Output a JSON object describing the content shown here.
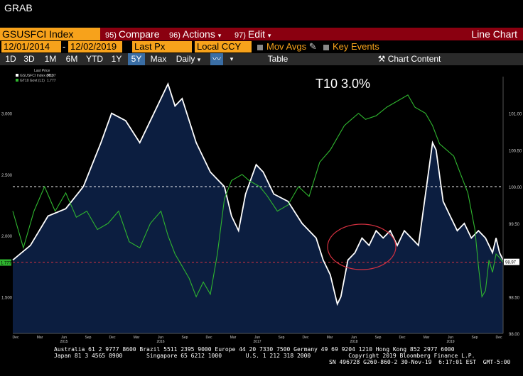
{
  "window": {
    "title": "GRAB"
  },
  "toolbar": {
    "ticker": "GSUSFCI Index",
    "compare": {
      "num": "95)",
      "label": "Compare"
    },
    "actions": {
      "num": "96)",
      "label": "Actions",
      "arrow": "▾"
    },
    "edit": {
      "num": "97)",
      "label": "Edit",
      "arrow": "▾"
    },
    "view": "Line Chart"
  },
  "range": {
    "start": "12/01/2014",
    "end": "12/02/2019",
    "price": "Last Px",
    "currency": "Local CCY",
    "mov_avgs": "Mov Avgs",
    "key_events": "Key Events"
  },
  "periods": [
    "1D",
    "3D",
    "1M",
    "6M",
    "YTD",
    "1Y",
    "5Y",
    "Max"
  ],
  "selected_period": "5Y",
  "freq": "Daily",
  "table_label": "Table",
  "chart_content_label": "Chart Content",
  "chart_data": {
    "type": "line",
    "annotation": "T10 3.0%",
    "legend_title": "Last Price",
    "series": [
      {
        "name": "GSUSFCI Index (R1)",
        "last": "98.97",
        "color": "#ffffff",
        "axis": "right",
        "area_color": "#0c1e40",
        "points": [
          [
            0,
            99.0
          ],
          [
            5,
            99.2
          ],
          [
            10,
            99.6
          ],
          [
            15,
            99.7
          ],
          [
            20,
            100.0
          ],
          [
            25,
            100.6
          ],
          [
            28,
            101.0
          ],
          [
            32,
            100.9
          ],
          [
            36,
            100.6
          ],
          [
            40,
            101.0
          ],
          [
            44,
            101.4
          ],
          [
            46,
            101.1
          ],
          [
            48,
            101.2
          ],
          [
            52,
            100.6
          ],
          [
            56,
            100.2
          ],
          [
            60,
            100.0
          ],
          [
            62,
            99.6
          ],
          [
            64,
            99.4
          ],
          [
            66,
            99.9
          ],
          [
            69,
            100.3
          ],
          [
            71,
            100.2
          ],
          [
            74,
            99.9
          ],
          [
            78,
            99.8
          ],
          [
            82,
            99.5
          ],
          [
            86,
            99.3
          ],
          [
            88,
            99.0
          ],
          [
            90,
            98.8
          ],
          [
            92,
            98.4
          ],
          [
            93,
            98.5
          ],
          [
            95,
            99.0
          ],
          [
            97,
            99.1
          ],
          [
            99,
            99.3
          ],
          [
            101,
            99.2
          ],
          [
            103,
            99.4
          ],
          [
            105,
            99.3
          ],
          [
            107,
            99.4
          ],
          [
            109,
            99.2
          ],
          [
            111,
            99.4
          ],
          [
            113,
            99.3
          ],
          [
            115,
            99.2
          ],
          [
            117,
            99.9
          ],
          [
            119,
            100.6
          ],
          [
            120,
            100.5
          ],
          [
            122,
            99.8
          ],
          [
            124,
            99.6
          ],
          [
            126,
            99.4
          ],
          [
            128,
            99.5
          ],
          [
            130,
            99.3
          ],
          [
            132,
            99.4
          ],
          [
            134,
            99.3
          ],
          [
            136,
            99.1
          ],
          [
            137,
            99.3
          ],
          [
            138,
            99.1
          ],
          [
            139,
            99.0
          ]
        ]
      },
      {
        "name": "GT10 Govt (L1)",
        "last": "1.777",
        "color": "#2fb52f",
        "axis": "left",
        "points": [
          [
            0,
            2.2
          ],
          [
            3,
            1.9
          ],
          [
            6,
            2.2
          ],
          [
            9,
            2.4
          ],
          [
            12,
            2.2
          ],
          [
            15,
            2.35
          ],
          [
            18,
            2.15
          ],
          [
            21,
            2.2
          ],
          [
            24,
            2.05
          ],
          [
            27,
            2.1
          ],
          [
            30,
            2.2
          ],
          [
            33,
            1.95
          ],
          [
            36,
            1.9
          ],
          [
            39,
            2.1
          ],
          [
            42,
            2.2
          ],
          [
            44,
            2.0
          ],
          [
            46,
            1.85
          ],
          [
            48,
            1.75
          ],
          [
            50,
            1.65
          ],
          [
            52,
            1.5
          ],
          [
            54,
            1.62
          ],
          [
            56,
            1.52
          ],
          [
            58,
            1.85
          ],
          [
            60,
            2.3
          ],
          [
            62,
            2.45
          ],
          [
            65,
            2.5
          ],
          [
            67,
            2.45
          ],
          [
            70,
            2.4
          ],
          [
            72,
            2.33
          ],
          [
            75,
            2.2
          ],
          [
            78,
            2.25
          ],
          [
            81,
            2.4
          ],
          [
            84,
            2.32
          ],
          [
            87,
            2.6
          ],
          [
            90,
            2.7
          ],
          [
            92,
            2.8
          ],
          [
            94,
            2.9
          ],
          [
            96,
            2.95
          ],
          [
            98,
            3.0
          ],
          [
            100,
            2.95
          ],
          [
            103,
            2.98
          ],
          [
            106,
            3.05
          ],
          [
            109,
            3.1
          ],
          [
            112,
            3.15
          ],
          [
            114,
            3.05
          ],
          [
            117,
            3.0
          ],
          [
            119,
            2.9
          ],
          [
            121,
            2.75
          ],
          [
            123,
            2.7
          ],
          [
            125,
            2.65
          ],
          [
            127,
            2.5
          ],
          [
            129,
            2.35
          ],
          [
            131,
            2.05
          ],
          [
            132,
            1.75
          ],
          [
            133,
            1.5
          ],
          [
            134,
            1.55
          ],
          [
            135,
            1.8
          ],
          [
            136,
            1.7
          ],
          [
            137,
            1.85
          ],
          [
            138,
            1.82
          ],
          [
            139,
            1.78
          ]
        ]
      }
    ],
    "left_ticks": [
      "3.000",
      "2.500",
      "2.000",
      "1.500"
    ],
    "right_ticks": [
      "101.00",
      "100.50",
      "100.00",
      "99.50",
      "99.00",
      "98.50",
      "98.00"
    ],
    "right_last_label": "98.97",
    "left_last_label": "1.777",
    "left_range": [
      1.2,
      3.3
    ],
    "right_range": [
      98.0,
      101.5
    ],
    "x_month_labels": [
      "Dec",
      "Mar",
      "Jun",
      "Sep",
      "Dec",
      "Mar",
      "Jun",
      "Sep",
      "Dec",
      "Mar",
      "Jun",
      "Sep",
      "Dec",
      "Mar",
      "Jun",
      "Sep",
      "Dec",
      "Mar",
      "Jun",
      "Sep",
      "Dec"
    ],
    "x_year_labels": [
      "2015",
      "2016",
      "2017",
      "2018",
      "2019"
    ],
    "reference_lines": [
      {
        "value": 100.0,
        "axis": "right",
        "color": "#ffffff"
      },
      {
        "value": 98.97,
        "axis": "right",
        "color": "#d43040"
      }
    ],
    "highlight": "ellipse around 2018 plateau"
  },
  "footer": {
    "line1": "Australia 61 2 9777 8600 Brazil 5511 2395 9000 Europe 44 20 7330 7500 Germany 49 69 9204 1210 Hong Kong 852 2977 6000",
    "line2": "Japan 81 3 4565 8900       Singapore 65 6212 1000       U.S. 1 212 318 2000           Copyright 2019 Bloomberg Finance L.P.",
    "line3": "SN 496728 G260-860-2 30-Nov-19  6:17:01 EST  GMT-5:00"
  }
}
